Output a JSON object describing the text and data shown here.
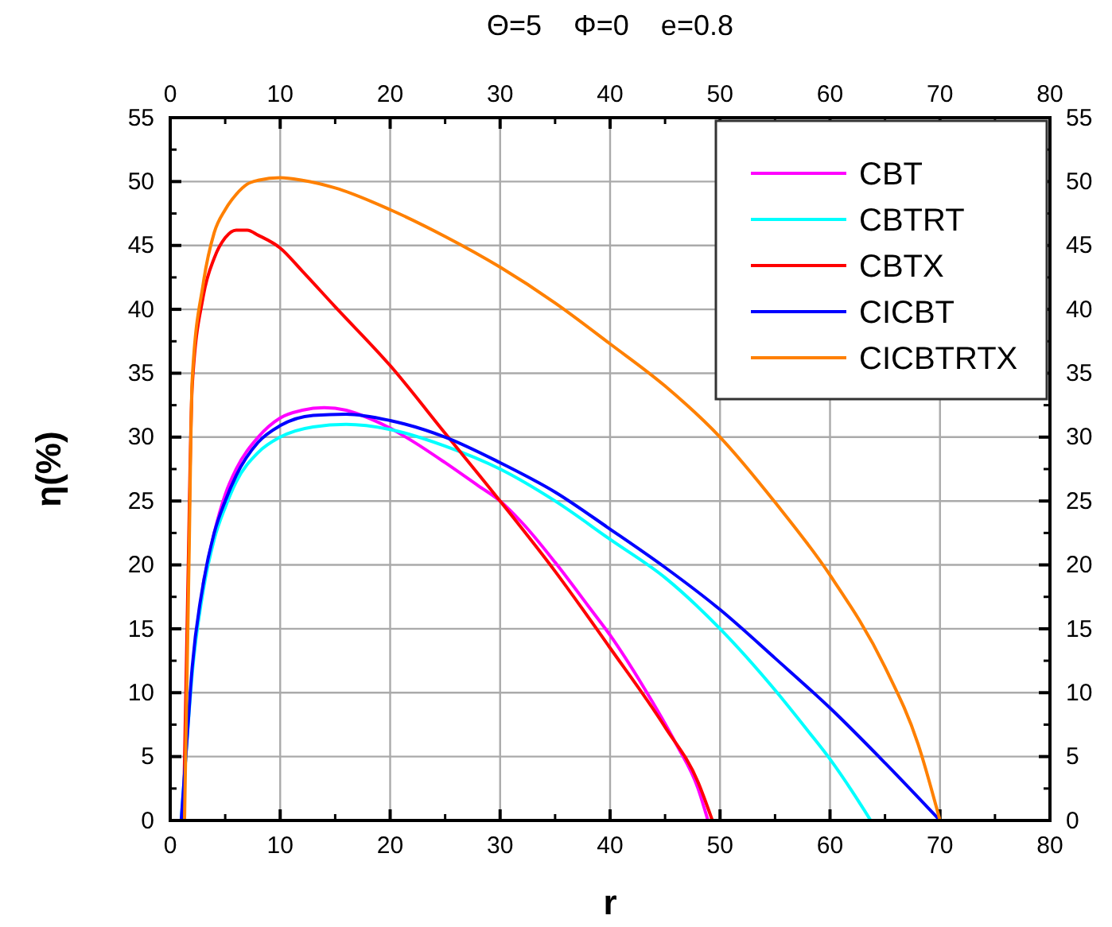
{
  "chart_data": {
    "type": "line",
    "title": "Θ=5    Φ=0    e=0.8",
    "xlabel": "r",
    "ylabel": "η(%)",
    "xlim": [
      0,
      80
    ],
    "xticks": [
      0,
      10,
      20,
      30,
      40,
      50,
      60,
      70,
      80
    ],
    "x2lim": [
      0,
      80
    ],
    "x2ticks": [
      0,
      10,
      20,
      30,
      40,
      50,
      60,
      70,
      80
    ],
    "ylim": [
      0,
      55
    ],
    "yticks": [
      0,
      5,
      10,
      15,
      20,
      25,
      30,
      35,
      40,
      45,
      50,
      55
    ],
    "y2lim": [
      0,
      55
    ],
    "y2ticks": [
      0,
      5,
      10,
      15,
      20,
      25,
      30,
      35,
      40,
      45,
      50,
      55
    ],
    "grid": true,
    "legend": "top right",
    "marker": "none",
    "line_style": "solid",
    "series": [
      {
        "name": "CBT",
        "color": "#ff00ff",
        "x": [
          3,
          4,
          5,
          6,
          8,
          10,
          12,
          14,
          16,
          18,
          20,
          22,
          25,
          28,
          30,
          32,
          35,
          38,
          40,
          43,
          46,
          48,
          48.9
        ],
        "values": [
          18.5,
          22.5,
          25.5,
          27.5,
          30,
          31.5,
          32.1,
          32.3,
          32.1,
          31.5,
          30.7,
          29.7,
          28,
          26.2,
          25,
          23.3,
          20.2,
          16.8,
          14.5,
          10.5,
          6,
          2.5,
          0
        ]
      },
      {
        "name": "CBTRT",
        "color": "#00ffff",
        "x": [
          1,
          1.5,
          2,
          3,
          4,
          5,
          6,
          8,
          10,
          13,
          16,
          20,
          25,
          30,
          35,
          40,
          45,
          50,
          55,
          58,
          60,
          62,
          63.7
        ],
        "values": [
          0,
          6,
          11.5,
          18,
          22,
          24.5,
          26.5,
          28.8,
          30,
          30.8,
          31,
          30.6,
          29.3,
          27.5,
          25,
          22,
          19,
          15,
          10.2,
          7,
          4.8,
          2.3,
          0
        ]
      },
      {
        "name": "CBTX",
        "color": "#ff0000",
        "x": [
          1.2,
          1.6,
          2,
          3,
          4,
          5,
          6,
          7,
          8,
          10,
          12,
          15,
          20,
          25,
          30,
          35,
          40,
          45,
          48,
          49.3
        ],
        "values": [
          0,
          18,
          34,
          41,
          44,
          45.6,
          46.2,
          46.2,
          45.8,
          44.8,
          43,
          40.2,
          35.6,
          30.3,
          25,
          19.5,
          13.5,
          7.3,
          3,
          0
        ]
      },
      {
        "name": "CICBT",
        "color": "#0000ff",
        "x": [
          1,
          1.5,
          2,
          3,
          4,
          5,
          6,
          8,
          10,
          13,
          16,
          20,
          25,
          30,
          35,
          40,
          45,
          50,
          55,
          60,
          65,
          70
        ],
        "values": [
          0,
          6,
          12,
          18.5,
          22.5,
          25,
          27,
          29.6,
          30.9,
          31.7,
          31.8,
          31.3,
          30,
          28,
          25.7,
          22.8,
          19.8,
          16.5,
          12.7,
          8.8,
          4.5,
          0
        ]
      },
      {
        "name": "CICBTRTX",
        "color": "#ff8000",
        "x": [
          1.3,
          1.7,
          2,
          3,
          4,
          5,
          6,
          7,
          8,
          10,
          12,
          15,
          20,
          25,
          30,
          35,
          40,
          45,
          50,
          55,
          60,
          65,
          68,
          70
        ],
        "values": [
          0,
          20,
          34.5,
          42,
          46,
          47.8,
          49,
          49.8,
          50.1,
          50.3,
          50.1,
          49.5,
          47.8,
          45.7,
          43.3,
          40.5,
          37.3,
          34,
          30,
          24.9,
          19.2,
          12,
          6,
          0
        ]
      }
    ]
  }
}
